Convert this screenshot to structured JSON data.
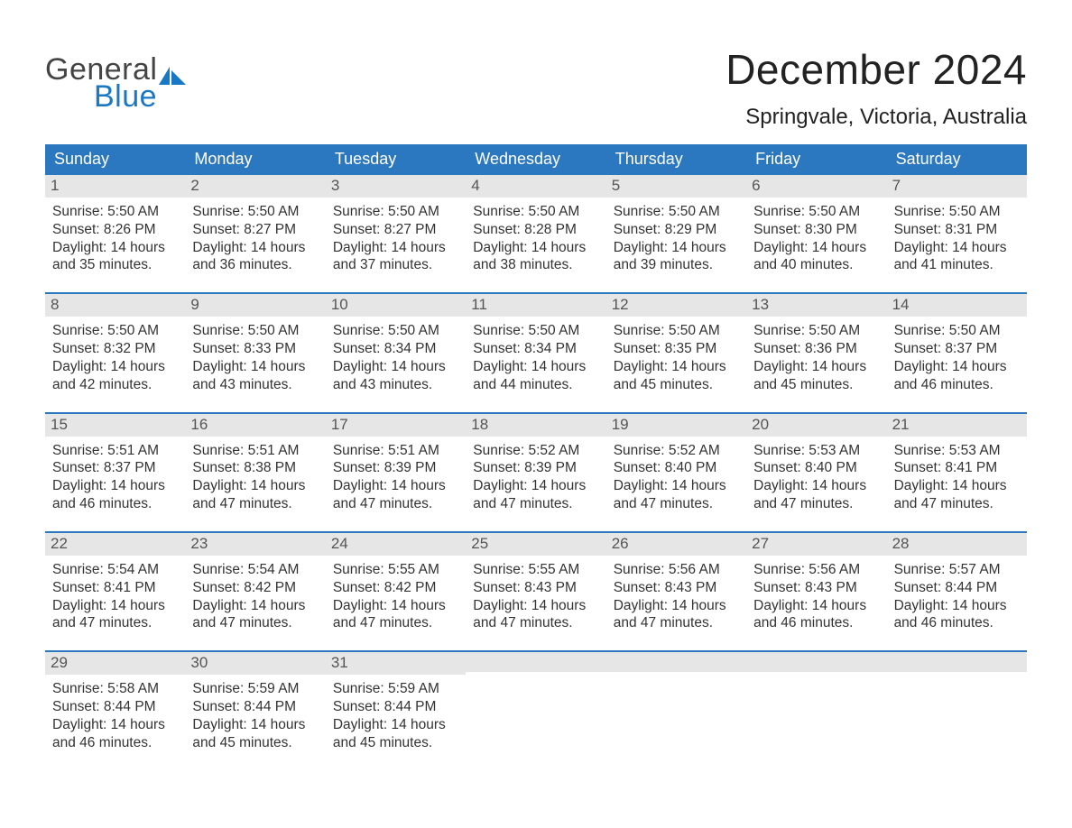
{
  "brand": {
    "word1": "General",
    "word2": "Blue",
    "sail_color": "#1978c4"
  },
  "title": {
    "month": "December 2024",
    "location": "Springvale, Victoria, Australia"
  },
  "colors": {
    "header_blue": "#2b77c0",
    "brand_blue": "#1978c4",
    "daynum_bg": "#e6e6e6",
    "text": "#333333"
  },
  "weekdays": [
    "Sunday",
    "Monday",
    "Tuesday",
    "Wednesday",
    "Thursday",
    "Friday",
    "Saturday"
  ],
  "weeks": [
    [
      {
        "n": "1",
        "sunrise": "Sunrise: 5:50 AM",
        "sunset": "Sunset: 8:26 PM",
        "d1": "Daylight: 14 hours",
        "d2": "and 35 minutes."
      },
      {
        "n": "2",
        "sunrise": "Sunrise: 5:50 AM",
        "sunset": "Sunset: 8:27 PM",
        "d1": "Daylight: 14 hours",
        "d2": "and 36 minutes."
      },
      {
        "n": "3",
        "sunrise": "Sunrise: 5:50 AM",
        "sunset": "Sunset: 8:27 PM",
        "d1": "Daylight: 14 hours",
        "d2": "and 37 minutes."
      },
      {
        "n": "4",
        "sunrise": "Sunrise: 5:50 AM",
        "sunset": "Sunset: 8:28 PM",
        "d1": "Daylight: 14 hours",
        "d2": "and 38 minutes."
      },
      {
        "n": "5",
        "sunrise": "Sunrise: 5:50 AM",
        "sunset": "Sunset: 8:29 PM",
        "d1": "Daylight: 14 hours",
        "d2": "and 39 minutes."
      },
      {
        "n": "6",
        "sunrise": "Sunrise: 5:50 AM",
        "sunset": "Sunset: 8:30 PM",
        "d1": "Daylight: 14 hours",
        "d2": "and 40 minutes."
      },
      {
        "n": "7",
        "sunrise": "Sunrise: 5:50 AM",
        "sunset": "Sunset: 8:31 PM",
        "d1": "Daylight: 14 hours",
        "d2": "and 41 minutes."
      }
    ],
    [
      {
        "n": "8",
        "sunrise": "Sunrise: 5:50 AM",
        "sunset": "Sunset: 8:32 PM",
        "d1": "Daylight: 14 hours",
        "d2": "and 42 minutes."
      },
      {
        "n": "9",
        "sunrise": "Sunrise: 5:50 AM",
        "sunset": "Sunset: 8:33 PM",
        "d1": "Daylight: 14 hours",
        "d2": "and 43 minutes."
      },
      {
        "n": "10",
        "sunrise": "Sunrise: 5:50 AM",
        "sunset": "Sunset: 8:34 PM",
        "d1": "Daylight: 14 hours",
        "d2": "and 43 minutes."
      },
      {
        "n": "11",
        "sunrise": "Sunrise: 5:50 AM",
        "sunset": "Sunset: 8:34 PM",
        "d1": "Daylight: 14 hours",
        "d2": "and 44 minutes."
      },
      {
        "n": "12",
        "sunrise": "Sunrise: 5:50 AM",
        "sunset": "Sunset: 8:35 PM",
        "d1": "Daylight: 14 hours",
        "d2": "and 45 minutes."
      },
      {
        "n": "13",
        "sunrise": "Sunrise: 5:50 AM",
        "sunset": "Sunset: 8:36 PM",
        "d1": "Daylight: 14 hours",
        "d2": "and 45 minutes."
      },
      {
        "n": "14",
        "sunrise": "Sunrise: 5:50 AM",
        "sunset": "Sunset: 8:37 PM",
        "d1": "Daylight: 14 hours",
        "d2": "and 46 minutes."
      }
    ],
    [
      {
        "n": "15",
        "sunrise": "Sunrise: 5:51 AM",
        "sunset": "Sunset: 8:37 PM",
        "d1": "Daylight: 14 hours",
        "d2": "and 46 minutes."
      },
      {
        "n": "16",
        "sunrise": "Sunrise: 5:51 AM",
        "sunset": "Sunset: 8:38 PM",
        "d1": "Daylight: 14 hours",
        "d2": "and 47 minutes."
      },
      {
        "n": "17",
        "sunrise": "Sunrise: 5:51 AM",
        "sunset": "Sunset: 8:39 PM",
        "d1": "Daylight: 14 hours",
        "d2": "and 47 minutes."
      },
      {
        "n": "18",
        "sunrise": "Sunrise: 5:52 AM",
        "sunset": "Sunset: 8:39 PM",
        "d1": "Daylight: 14 hours",
        "d2": "and 47 minutes."
      },
      {
        "n": "19",
        "sunrise": "Sunrise: 5:52 AM",
        "sunset": "Sunset: 8:40 PM",
        "d1": "Daylight: 14 hours",
        "d2": "and 47 minutes."
      },
      {
        "n": "20",
        "sunrise": "Sunrise: 5:53 AM",
        "sunset": "Sunset: 8:40 PM",
        "d1": "Daylight: 14 hours",
        "d2": "and 47 minutes."
      },
      {
        "n": "21",
        "sunrise": "Sunrise: 5:53 AM",
        "sunset": "Sunset: 8:41 PM",
        "d1": "Daylight: 14 hours",
        "d2": "and 47 minutes."
      }
    ],
    [
      {
        "n": "22",
        "sunrise": "Sunrise: 5:54 AM",
        "sunset": "Sunset: 8:41 PM",
        "d1": "Daylight: 14 hours",
        "d2": "and 47 minutes."
      },
      {
        "n": "23",
        "sunrise": "Sunrise: 5:54 AM",
        "sunset": "Sunset: 8:42 PM",
        "d1": "Daylight: 14 hours",
        "d2": "and 47 minutes."
      },
      {
        "n": "24",
        "sunrise": "Sunrise: 5:55 AM",
        "sunset": "Sunset: 8:42 PM",
        "d1": "Daylight: 14 hours",
        "d2": "and 47 minutes."
      },
      {
        "n": "25",
        "sunrise": "Sunrise: 5:55 AM",
        "sunset": "Sunset: 8:43 PM",
        "d1": "Daylight: 14 hours",
        "d2": "and 47 minutes."
      },
      {
        "n": "26",
        "sunrise": "Sunrise: 5:56 AM",
        "sunset": "Sunset: 8:43 PM",
        "d1": "Daylight: 14 hours",
        "d2": "and 47 minutes."
      },
      {
        "n": "27",
        "sunrise": "Sunrise: 5:56 AM",
        "sunset": "Sunset: 8:43 PM",
        "d1": "Daylight: 14 hours",
        "d2": "and 46 minutes."
      },
      {
        "n": "28",
        "sunrise": "Sunrise: 5:57 AM",
        "sunset": "Sunset: 8:44 PM",
        "d1": "Daylight: 14 hours",
        "d2": "and 46 minutes."
      }
    ],
    [
      {
        "n": "29",
        "sunrise": "Sunrise: 5:58 AM",
        "sunset": "Sunset: 8:44 PM",
        "d1": "Daylight: 14 hours",
        "d2": "and 46 minutes."
      },
      {
        "n": "30",
        "sunrise": "Sunrise: 5:59 AM",
        "sunset": "Sunset: 8:44 PM",
        "d1": "Daylight: 14 hours",
        "d2": "and 45 minutes."
      },
      {
        "n": "31",
        "sunrise": "Sunrise: 5:59 AM",
        "sunset": "Sunset: 8:44 PM",
        "d1": "Daylight: 14 hours",
        "d2": "and 45 minutes."
      },
      null,
      null,
      null,
      null
    ]
  ]
}
